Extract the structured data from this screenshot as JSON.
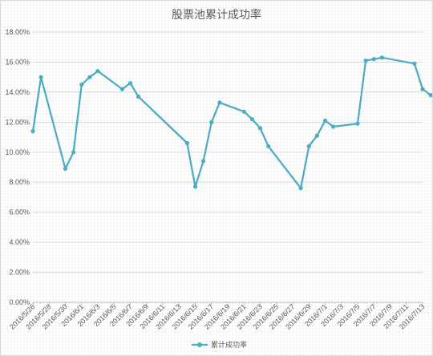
{
  "chart_data": {
    "type": "line",
    "title": "股票池累计成功率",
    "xlabel": "",
    "ylabel": "",
    "ylim": [
      0,
      18
    ],
    "y_ticks": [
      "0.00%",
      "2.00%",
      "4.00%",
      "6.00%",
      "8.00%",
      "10.00%",
      "12.00%",
      "14.00%",
      "16.00%",
      "18.00%"
    ],
    "x_range": [
      "2016/5/26",
      "2016/7/13"
    ],
    "x_ticks": [
      "2016/5/26",
      "2016/5/28",
      "2016/5/30",
      "2016/6/1",
      "2016/6/3",
      "2016/6/5",
      "2016/6/7",
      "2016/6/9",
      "2016/6/11",
      "2016/6/13",
      "2016/6/15",
      "2016/6/17",
      "2016/6/19",
      "2016/6/21",
      "2016/6/23",
      "2016/6/25",
      "2016/6/27",
      "2016/6/29",
      "2016/7/1",
      "2016/7/3",
      "2016/7/5",
      "2016/7/7",
      "2016/7/9",
      "2016/7/11",
      "2016/7/13"
    ],
    "grid": true,
    "legend": "bottom",
    "color": "#4bacc6",
    "series": [
      {
        "name": "累计成功率",
        "x": [
          "2016/5/26",
          "2016/5/27",
          "2016/5/30",
          "2016/5/31",
          "2016/6/1",
          "2016/6/2",
          "2016/6/3",
          "2016/6/6",
          "2016/6/7",
          "2016/6/8",
          "2016/6/14",
          "2016/6/15",
          "2016/6/16",
          "2016/6/17",
          "2016/6/18",
          "2016/6/21",
          "2016/6/22",
          "2016/6/23",
          "2016/6/24",
          "2016/6/28",
          "2016/6/29",
          "2016/6/30",
          "2016/7/1",
          "2016/7/2",
          "2016/7/5",
          "2016/7/6",
          "2016/7/7",
          "2016/7/8",
          "2016/7/12",
          "2016/7/13",
          "2016/7/14"
        ],
        "values": [
          11.4,
          15.0,
          8.9,
          10.0,
          14.5,
          15.0,
          15.4,
          14.2,
          14.6,
          13.7,
          10.6,
          7.7,
          9.4,
          12.0,
          13.3,
          12.7,
          12.2,
          11.6,
          10.4,
          7.6,
          10.4,
          11.1,
          12.1,
          11.7,
          11.9,
          16.1,
          16.2,
          16.3,
          15.9,
          14.2,
          13.8
        ]
      }
    ]
  }
}
